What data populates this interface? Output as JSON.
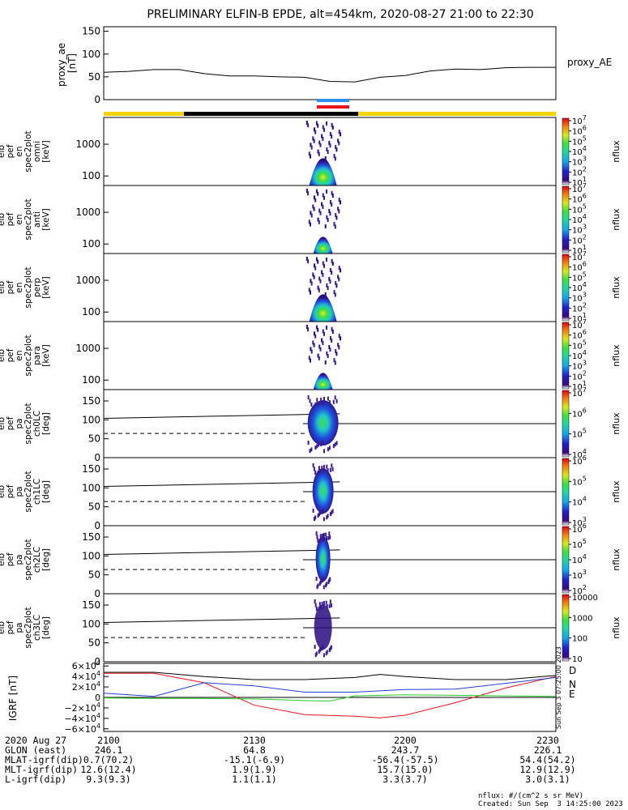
{
  "title": "PRELIMINARY ELFIN-B EPDE, alt=454km, 2020-08-27 21:00 to 22:30",
  "colors": {
    "bar_yellow": "#f5d400",
    "bar_black": "#000000",
    "bar_blue": "#2f8fe8",
    "bar_red": "#e8141c",
    "grf_D": "#e8141c",
    "grf_N": "#1f3fd8",
    "grf_E": "#22cc22",
    "grf_total": "#000000"
  },
  "top_panel": {
    "ylabel": "proxy_ae [nT]",
    "ylabel_lines": [
      "proxy_ae",
      "[nT]"
    ],
    "legend": "proxy_AE",
    "ticks": [
      "150",
      "100",
      "50",
      "0"
    ]
  },
  "spectrogram_panels": [
    {
      "id": "omni",
      "ylabel_lines": [
        "elb",
        "pef",
        "en",
        "spec2plot",
        "omni",
        "[keV]"
      ],
      "ticks": [
        "1000",
        "100"
      ],
      "cbar_label": "nflux",
      "cbar_ticks": [
        "10^7",
        "10^6",
        "10^5",
        "10^4",
        "10^3",
        "10^2",
        "10^1"
      ]
    },
    {
      "id": "anti",
      "ylabel_lines": [
        "elb",
        "pef",
        "en",
        "spec2plot",
        "anti",
        "[keV]"
      ],
      "ticks": [
        "1000",
        "100"
      ],
      "cbar_label": "nflux",
      "cbar_ticks": [
        "10^7",
        "10^6",
        "10^5",
        "10^4",
        "10^3",
        "10^2",
        "10^1"
      ]
    },
    {
      "id": "perp",
      "ylabel_lines": [
        "elb",
        "pef",
        "en",
        "spec2plot",
        "perp",
        "[keV]"
      ],
      "ticks": [
        "1000",
        "100"
      ],
      "cbar_label": "nflux",
      "cbar_ticks": [
        "10^7",
        "10^6",
        "10^5",
        "10^4",
        "10^3",
        "10^2",
        "10^1"
      ]
    },
    {
      "id": "para",
      "ylabel_lines": [
        "elb",
        "pef",
        "en",
        "spec2plot",
        "para",
        "[keV]"
      ],
      "ticks": [
        "1000",
        "100"
      ],
      "cbar_label": "nflux",
      "cbar_ticks": [
        "10^7",
        "10^6",
        "10^5",
        "10^4",
        "10^3",
        "10^2",
        "10^1"
      ]
    },
    {
      "id": "ch0LC",
      "ylabel_lines": [
        "elb",
        "pef",
        "pa",
        "spec2plot",
        "ch0LC",
        "[deg]"
      ],
      "ticks": [
        "150",
        "100",
        "50",
        "0"
      ],
      "cbar_label": "nflux",
      "cbar_ticks": [
        "10^7",
        "10^6",
        "10^5",
        "10^4"
      ]
    },
    {
      "id": "ch1LC",
      "ylabel_lines": [
        "elb",
        "pef",
        "pa",
        "spec2plot",
        "ch1LC",
        "[deg]"
      ],
      "ticks": [
        "150",
        "100",
        "50",
        "0"
      ],
      "cbar_label": "nflux",
      "cbar_ticks": [
        "10^6",
        "10^5",
        "10^4",
        "10^3"
      ]
    },
    {
      "id": "ch2LC",
      "ylabel_lines": [
        "elb",
        "pef",
        "pa",
        "spec2plot",
        "ch2LC",
        "[deg]"
      ],
      "ticks": [
        "150",
        "100",
        "50",
        "0"
      ],
      "cbar_label": "nflux",
      "cbar_ticks": [
        "10^6",
        "10^5",
        "10^4",
        "10^3",
        "10^2"
      ]
    },
    {
      "id": "ch3LC",
      "ylabel_lines": [
        "elb",
        "pef",
        "pa",
        "spec2plot",
        "ch3LC",
        "[deg]"
      ],
      "ticks": [
        "150",
        "100",
        "50",
        "0"
      ],
      "cbar_label": "nflux",
      "cbar_ticks": [
        "10000",
        "1000",
        "100",
        "10"
      ]
    }
  ],
  "grf_panel": {
    "ylabel": "IGRF [nT]",
    "ticks": [
      "6×10^4",
      "4×10^4",
      "2×10^4",
      "0",
      "−2×10^4",
      "−4×10^4",
      "−6×10^4"
    ],
    "legend": [
      "D",
      "N",
      "E"
    ],
    "side_label": "Sun Sep  3 07:25:00 2023"
  },
  "footer": {
    "rows": [
      {
        "label": "2020 Aug 27",
        "values": [
          "2100",
          "2130",
          "2200",
          "2230"
        ]
      },
      {
        "label": "GLON (east)",
        "values": [
          "246.1",
          "64.8",
          "243.7",
          "226.1"
        ]
      },
      {
        "label": "MLAT-igrf(dip)",
        "values": [
          "0.7(70.2)",
          "-15.1(-6.9)",
          "-56.4(-57.5)",
          "54.4(54.2)"
        ]
      },
      {
        "label": "MLT-igrf(dip)",
        "values": [
          "12.6(12.4)",
          "1.9(1.9)",
          "15.7(15.0)",
          "12.9(12.9)"
        ]
      },
      {
        "label": "L-igrf(dip)",
        "values": [
          "9.3(9.3)",
          "1.1(1.1)",
          "3.3(3.7)",
          "3.0(3.1)"
        ]
      }
    ],
    "note_units": "nflux: #/(cm^2 s sr MeV)",
    "note_created": "Created: Sun Sep  3 14:25:00 2023"
  },
  "chart_data": {
    "type": "heatmap",
    "time_range": [
      "2020-08-27 21:00",
      "2020-08-27 22:30"
    ],
    "x_ticks": [
      "2100",
      "2130",
      "2200",
      "2230"
    ],
    "proxy_ae": {
      "ylim": [
        0,
        160
      ],
      "time_min": [
        0,
        5,
        10,
        15,
        20,
        25,
        30,
        35,
        40,
        45,
        50,
        55,
        60,
        65,
        70,
        75,
        80,
        85,
        90
      ],
      "values": [
        60,
        62,
        66,
        66,
        57,
        52,
        52,
        50,
        49,
        40,
        39,
        49,
        53,
        63,
        67,
        66,
        70,
        71,
        71
      ]
    },
    "science_zone": {
      "start_min": 40.3,
      "end_min": 47.0
    },
    "energy_panels_ylim_keV": [
      50,
      7000
    ],
    "pitch_angle_panels_ylim_deg": [
      0,
      180
    ],
    "loss_cone_deg": {
      "solid": [
        104,
        116
      ],
      "dashed": 64,
      "horizontal": 90
    },
    "igrf_nT": {
      "ylim": [
        -65000,
        65000
      ],
      "series": [
        {
          "name": "D",
          "time_min": [
            0,
            10,
            20,
            30,
            40,
            50,
            55,
            60,
            70,
            80,
            90
          ],
          "values": [
            46000,
            46000,
            28000,
            -15000,
            -33000,
            -36000,
            -39000,
            -34000,
            -10000,
            18000,
            40000
          ]
        },
        {
          "name": "N",
          "time_min": [
            0,
            10,
            20,
            30,
            40,
            50,
            60,
            70,
            80,
            90
          ],
          "values": [
            8000,
            2000,
            28000,
            22000,
            10000,
            10000,
            15000,
            16000,
            27000,
            38000
          ]
        },
        {
          "name": "E",
          "time_min": [
            0,
            10,
            20,
            30,
            40,
            45,
            50,
            60,
            70,
            80,
            90
          ],
          "values": [
            -1000,
            -2000,
            -2000,
            -3000,
            -6000,
            -7000,
            3000,
            5000,
            4000,
            3000,
            2000
          ]
        },
        {
          "time_min": [
            0,
            10,
            20,
            30,
            40,
            50,
            55,
            60,
            70,
            80,
            90
          ],
          "values": [
            48000,
            48000,
            40000,
            34000,
            34000,
            38000,
            44000,
            40000,
            34000,
            34000,
            42000
          ]
        }
      ]
    }
  }
}
